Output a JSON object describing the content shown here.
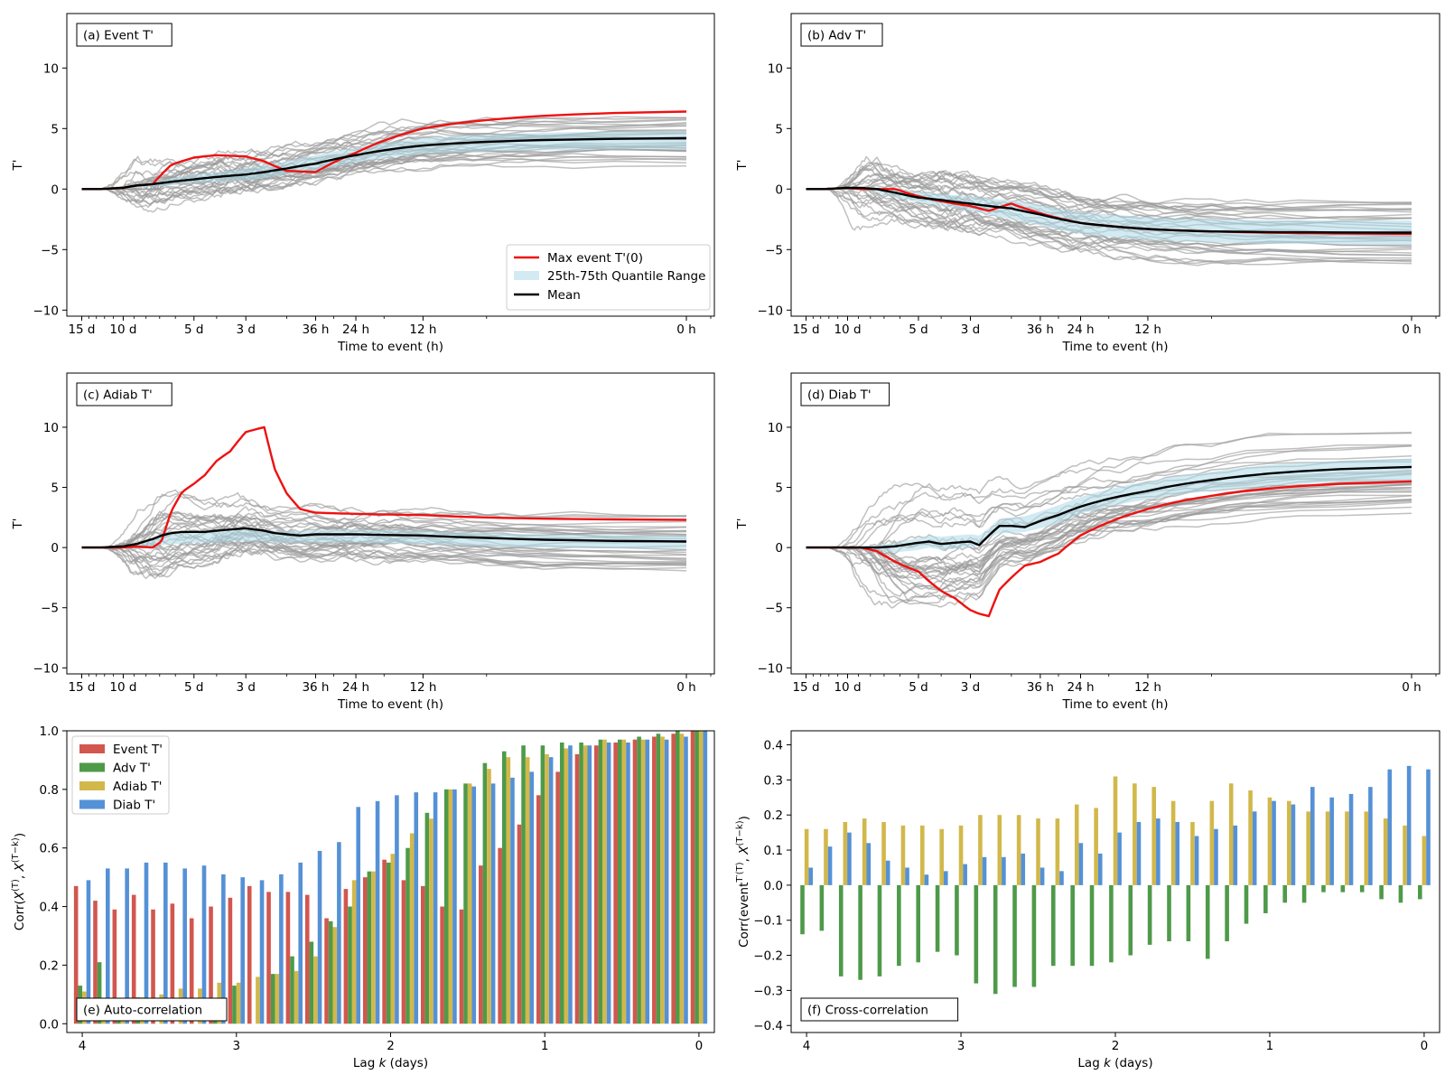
{
  "colors": {
    "event": "#d1574f",
    "adv": "#4e9a49",
    "adiab": "#d2b84b",
    "diab": "#5591d6",
    "red": "#ee1111",
    "mean": "#000000",
    "gray": "#9a9a9a",
    "band": "#add8e6"
  },
  "time_axis": {
    "xlabel": "Time to event (h)",
    "ticks": [
      {
        "h": 360,
        "label": "15 d"
      },
      {
        "h": 240,
        "label": "10 d"
      },
      {
        "h": 120,
        "label": "5 d"
      },
      {
        "h": 72,
        "label": "3 d"
      },
      {
        "h": 36,
        "label": "36 h"
      },
      {
        "h": 24,
        "label": "24 h"
      },
      {
        "h": 12,
        "label": "12 h"
      },
      {
        "h": 0,
        "label": "0 h"
      }
    ],
    "yticks": [
      -10,
      -5,
      0,
      5,
      10
    ],
    "ylabel": "T'",
    "ylim": [
      -10.5,
      14.5
    ]
  },
  "lag_axis": {
    "xlabel": "Lag k (days)",
    "xticks": [
      4,
      3,
      2,
      1,
      0
    ]
  },
  "legend_a": {
    "max_event": "Max event T'(0)",
    "quantile": "25th-75th Quantile Range",
    "mean": "Mean"
  },
  "legend_e": [
    "Event T'",
    "Adv T'",
    "Adiab T'",
    "Diab T'"
  ],
  "chart_data": [
    {
      "id": "a",
      "type": "line",
      "panel_label": "(a) Event T'",
      "x_hours_to_event": [
        360,
        300,
        240,
        210,
        180,
        150,
        120,
        96,
        72,
        60,
        48,
        36,
        24,
        12,
        6,
        0
      ],
      "series": [
        {
          "name": "Max event T'(0)",
          "values": [
            0,
            0,
            0.1,
            0.3,
            0.4,
            2.0,
            2.6,
            2.8,
            2.7,
            2.3,
            1.5,
            1.4,
            3.0,
            5.0,
            5.7,
            6.4
          ]
        },
        {
          "name": "Mean",
          "values": [
            0,
            0,
            0.1,
            0.3,
            0.4,
            0.6,
            0.8,
            1.0,
            1.2,
            1.4,
            1.7,
            2.1,
            2.8,
            3.6,
            3.9,
            4.2
          ]
        }
      ],
      "quantile_band": {
        "low": [
          0,
          0,
          0,
          0.1,
          0.2,
          0.3,
          0.5,
          0.6,
          0.7,
          0.9,
          1.2,
          1.5,
          2.2,
          2.9,
          3.1,
          3.3
        ],
        "high": [
          0,
          0,
          0.2,
          0.4,
          0.6,
          0.9,
          1.2,
          1.4,
          1.7,
          2.0,
          2.3,
          2.8,
          3.4,
          4.2,
          4.5,
          4.8
        ]
      },
      "member_spread": [
        1.0,
        1.0,
        1.5,
        1.8,
        1.6,
        1.3,
        1.2,
        1.2,
        1.2,
        1.2,
        1.3,
        1.3,
        1.3,
        1.4,
        1.4,
        1.5
      ],
      "legend": "bottom-right"
    },
    {
      "id": "b",
      "type": "line",
      "panel_label": "(b) Adv T'",
      "x_hours_to_event": [
        360,
        300,
        240,
        210,
        180,
        150,
        120,
        96,
        72,
        60,
        48,
        36,
        24,
        12,
        6,
        0
      ],
      "series": [
        {
          "name": "Max event T'(0)",
          "values": [
            0,
            0,
            0.1,
            0.0,
            0.0,
            0.0,
            -0.6,
            -1.0,
            -1.4,
            -1.8,
            -1.2,
            -2.0,
            -2.8,
            -3.3,
            -3.5,
            -3.7
          ]
        },
        {
          "name": "Mean",
          "values": [
            0,
            0,
            0.1,
            0.1,
            0.0,
            -0.3,
            -0.7,
            -0.9,
            -1.2,
            -1.4,
            -1.6,
            -2.1,
            -2.8,
            -3.3,
            -3.5,
            -3.6
          ]
        }
      ],
      "quantile_band": {
        "low": [
          0,
          0,
          0,
          -0.1,
          -0.3,
          -0.7,
          -1.1,
          -1.4,
          -1.8,
          -2.1,
          -2.5,
          -3.0,
          -3.7,
          -4.2,
          -4.4,
          -4.6
        ],
        "high": [
          0,
          0,
          0.1,
          0.1,
          0.1,
          0.0,
          -0.2,
          -0.4,
          -0.6,
          -0.8,
          -0.9,
          -1.3,
          -1.9,
          -2.3,
          -2.5,
          -2.6
        ]
      },
      "member_spread": [
        1.0,
        1.0,
        1.6,
        2.2,
        2.0,
        1.6,
        1.6,
        1.8,
        1.8,
        1.7,
        1.8,
        1.8,
        1.8,
        1.8,
        1.9,
        1.9
      ],
      "legend": "none"
    },
    {
      "id": "c",
      "type": "line",
      "panel_label": "(c) Adiab T'",
      "x_hours_to_event": [
        360,
        300,
        240,
        210,
        180,
        165,
        150,
        135,
        120,
        108,
        96,
        84,
        72,
        60,
        54,
        48,
        42,
        36,
        24,
        12,
        6,
        0
      ],
      "series": [
        {
          "name": "Max event T'(0)",
          "values": [
            0,
            0,
            0,
            0.1,
            0.0,
            0.5,
            3.0,
            4.6,
            5.3,
            6.0,
            7.2,
            8.0,
            9.6,
            10.0,
            6.5,
            4.5,
            3.2,
            2.9,
            2.8,
            2.7,
            2.5,
            2.3
          ]
        },
        {
          "name": "Mean",
          "values": [
            0,
            0,
            0.1,
            0.3,
            0.7,
            1.0,
            1.2,
            1.3,
            1.3,
            1.3,
            1.4,
            1.5,
            1.6,
            1.4,
            1.2,
            1.1,
            1.0,
            1.1,
            1.1,
            1.0,
            0.8,
            0.5
          ]
        }
      ],
      "quantile_band": {
        "low": [
          0,
          0,
          0,
          0,
          0.1,
          0.2,
          0.3,
          0.3,
          0.4,
          0.4,
          0.4,
          0.5,
          0.5,
          0.5,
          0.4,
          0.4,
          0.4,
          0.4,
          0.4,
          0.3,
          0.1,
          -0.1
        ],
        "high": [
          0,
          0,
          0.1,
          0.3,
          0.6,
          0.9,
          1.1,
          1.2,
          1.3,
          1.3,
          1.4,
          1.5,
          1.6,
          1.5,
          1.4,
          1.4,
          1.4,
          1.5,
          1.5,
          1.4,
          1.2,
          1.0
        ]
      },
      "member_spread": [
        0.8,
        0.8,
        1.2,
        2.0,
        2.6,
        2.8,
        2.6,
        2.3,
        2.0,
        1.8,
        1.7,
        1.6,
        1.5,
        1.4,
        1.4,
        1.4,
        1.4,
        1.4,
        1.4,
        1.5,
        1.6,
        1.7
      ],
      "legend": "none"
    },
    {
      "id": "d",
      "type": "line",
      "panel_label": "(d) Diab T'",
      "x_hours_to_event": [
        360,
        300,
        240,
        210,
        180,
        150,
        120,
        108,
        96,
        84,
        72,
        66,
        60,
        54,
        48,
        42,
        36,
        30,
        24,
        12,
        6,
        0
      ],
      "series": [
        {
          "name": "Max event T'(0)",
          "values": [
            0,
            0,
            0,
            0.0,
            -0.3,
            -1.2,
            -2.0,
            -2.8,
            -3.6,
            -4.2,
            -5.2,
            -5.5,
            -5.7,
            -3.5,
            -2.5,
            -1.5,
            -1.2,
            -0.5,
            1.0,
            3.2,
            4.3,
            5.5
          ]
        },
        {
          "name": "Mean",
          "values": [
            0,
            0,
            0,
            0,
            0.0,
            0.1,
            0.4,
            0.5,
            0.3,
            0.4,
            0.5,
            0.2,
            1.0,
            1.8,
            1.8,
            1.7,
            2.2,
            2.7,
            3.4,
            4.7,
            5.6,
            6.7
          ]
        }
      ],
      "quantile_band": {
        "low": [
          0,
          0,
          0,
          0,
          -0.2,
          -0.4,
          -0.2,
          0.0,
          -0.2,
          -0.1,
          0.0,
          0.2,
          0.8,
          1.2,
          1.2,
          1.3,
          1.6,
          2.0,
          2.8,
          4.0,
          4.7,
          5.6
        ],
        "high": [
          0,
          0,
          0,
          0.1,
          0.2,
          0.4,
          0.8,
          1.0,
          0.9,
          1.0,
          1.1,
          1.0,
          1.6,
          2.4,
          2.5,
          2.6,
          3.0,
          3.5,
          4.2,
          5.5,
          6.3,
          7.4
        ]
      },
      "member_spread": [
        0.8,
        0.8,
        1.2,
        2.5,
        3.5,
        4.0,
        4.0,
        4.0,
        3.8,
        3.8,
        3.6,
        3.4,
        3.2,
        2.8,
        2.6,
        2.5,
        2.5,
        2.4,
        2.3,
        2.4,
        2.5,
        2.6
      ],
      "legend": "none"
    },
    {
      "id": "e",
      "type": "bar",
      "panel_label": "(e) Auto-correlation",
      "ylabel": "Corr(X^(T), X^(T-k))",
      "ylim": [
        -0.03,
        1.0
      ],
      "yticks": [
        0.0,
        0.2,
        0.4,
        0.6,
        0.8,
        1.0
      ],
      "xlim": [
        4.1,
        -0.1
      ],
      "lag_days": [
        4.0,
        3.875,
        3.75,
        3.625,
        3.5,
        3.375,
        3.25,
        3.125,
        3.0,
        2.875,
        2.75,
        2.625,
        2.5,
        2.375,
        2.25,
        2.125,
        2.0,
        1.875,
        1.75,
        1.625,
        1.5,
        1.375,
        1.25,
        1.125,
        1.0,
        0.875,
        0.75,
        0.625,
        0.5,
        0.375,
        0.25,
        0.125,
        0.0
      ],
      "series": [
        {
          "name": "Event T'",
          "values": [
            0.47,
            0.42,
            0.39,
            0.44,
            0.39,
            0.41,
            0.36,
            0.4,
            0.43,
            0.47,
            0.45,
            0.45,
            0.44,
            0.36,
            0.46,
            0.5,
            0.56,
            0.49,
            0.47,
            0.4,
            0.39,
            0.54,
            0.6,
            0.68,
            0.78,
            0.86,
            0.92,
            0.95,
            0.96,
            0.97,
            0.98,
            0.99,
            1.0
          ]
        },
        {
          "name": "Adv T'",
          "values": [
            0.13,
            0.21,
            0.01,
            0.09,
            0.0,
            0.0,
            0.0,
            0.08,
            0.13,
            0.0,
            0.17,
            0.23,
            0.28,
            0.35,
            0.4,
            0.52,
            0.55,
            0.6,
            0.72,
            0.8,
            0.82,
            0.89,
            0.93,
            0.95,
            0.95,
            0.96,
            0.96,
            0.97,
            0.97,
            0.98,
            0.99,
            1.0,
            1.0
          ]
        },
        {
          "name": "Adiab T'",
          "values": [
            0.11,
            0.04,
            0.04,
            0.09,
            0.1,
            0.12,
            0.12,
            0.14,
            0.14,
            0.16,
            0.17,
            0.18,
            0.23,
            0.33,
            0.49,
            0.52,
            0.58,
            0.65,
            0.7,
            0.8,
            0.82,
            0.87,
            0.91,
            0.91,
            0.92,
            0.94,
            0.95,
            0.97,
            0.97,
            0.97,
            0.98,
            0.99,
            1.0
          ]
        },
        {
          "name": "Diab T'",
          "values": [
            0.49,
            0.53,
            0.53,
            0.55,
            0.55,
            0.53,
            0.54,
            0.51,
            0.5,
            0.49,
            0.51,
            0.55,
            0.59,
            0.62,
            0.74,
            0.76,
            0.78,
            0.79,
            0.79,
            0.8,
            0.81,
            0.82,
            0.84,
            0.86,
            0.91,
            0.95,
            0.95,
            0.96,
            0.96,
            0.97,
            0.97,
            0.98,
            1.0
          ]
        }
      ],
      "legend": "top-left"
    },
    {
      "id": "f",
      "type": "bar",
      "panel_label": "(f) Cross-correlation",
      "ylabel": "Corr(event T'^(T), X^(T-k))",
      "ylim": [
        -0.42,
        0.44
      ],
      "yticks": [
        -0.4,
        -0.3,
        -0.2,
        -0.1,
        0.0,
        0.1,
        0.2,
        0.3,
        0.4
      ],
      "xlim": [
        4.1,
        -0.1
      ],
      "lag_days": [
        4.0,
        3.875,
        3.75,
        3.625,
        3.5,
        3.375,
        3.25,
        3.125,
        3.0,
        2.875,
        2.75,
        2.625,
        2.5,
        2.375,
        2.25,
        2.125,
        2.0,
        1.875,
        1.75,
        1.625,
        1.5,
        1.375,
        1.25,
        1.125,
        1.0,
        0.875,
        0.75,
        0.625,
        0.5,
        0.375,
        0.25,
        0.125,
        0.0
      ],
      "series": [
        {
          "name": "Adv T'",
          "values": [
            -0.14,
            -0.13,
            -0.26,
            -0.27,
            -0.26,
            -0.23,
            -0.22,
            -0.19,
            -0.2,
            -0.28,
            -0.31,
            -0.29,
            -0.29,
            -0.23,
            -0.23,
            -0.23,
            -0.22,
            -0.2,
            -0.17,
            -0.16,
            -0.16,
            -0.21,
            -0.16,
            -0.11,
            -0.08,
            -0.05,
            -0.05,
            -0.02,
            -0.02,
            -0.02,
            -0.04,
            -0.05,
            -0.04
          ]
        },
        {
          "name": "Adiab T'",
          "values": [
            0.16,
            0.16,
            0.18,
            0.19,
            0.18,
            0.17,
            0.17,
            0.16,
            0.17,
            0.2,
            0.2,
            0.2,
            0.19,
            0.19,
            0.23,
            0.22,
            0.31,
            0.29,
            0.28,
            0.24,
            0.18,
            0.24,
            0.29,
            0.27,
            0.25,
            0.24,
            0.21,
            0.21,
            0.21,
            0.21,
            0.19,
            0.17,
            0.14
          ]
        },
        {
          "name": "Diab T'",
          "values": [
            0.05,
            0.11,
            0.15,
            0.12,
            0.07,
            0.05,
            0.03,
            0.04,
            0.06,
            0.08,
            0.08,
            0.09,
            0.05,
            0.04,
            0.12,
            0.09,
            0.15,
            0.18,
            0.19,
            0.18,
            0.14,
            0.16,
            0.17,
            0.21,
            0.24,
            0.23,
            0.28,
            0.25,
            0.26,
            0.28,
            0.33,
            0.34,
            0.33
          ]
        }
      ],
      "legend": "none"
    }
  ]
}
